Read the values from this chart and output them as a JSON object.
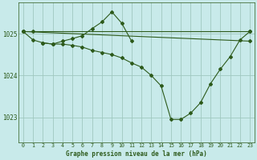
{
  "xlabel": "Graphe pression niveau de la mer (hPa)",
  "xlim": [
    -0.5,
    23.5
  ],
  "ylim": [
    1022.4,
    1025.75
  ],
  "yticks": [
    1023,
    1024,
    1025
  ],
  "xticks": [
    0,
    1,
    2,
    3,
    4,
    5,
    6,
    7,
    8,
    9,
    10,
    11,
    12,
    13,
    14,
    15,
    16,
    17,
    18,
    19,
    20,
    21,
    22,
    23
  ],
  "bg_color": "#c8eaea",
  "line_color": "#2d5a1b",
  "grid_color": "#a0c8c0",
  "series": [
    {
      "x": [
        0,
        1,
        23
      ],
      "y": [
        1025.05,
        1025.05,
        1025.05
      ]
    },
    {
      "x": [
        0,
        23
      ],
      "y": [
        1025.05,
        1024.82
      ]
    },
    {
      "x": [
        0,
        1,
        2,
        3,
        4,
        5,
        6,
        7,
        8,
        9,
        10,
        11,
        12,
        13,
        14,
        15,
        16,
        17,
        18,
        19,
        20,
        21,
        22,
        23
      ],
      "y": [
        1025.05,
        1024.85,
        1024.78,
        1024.75,
        1024.75,
        1024.72,
        1024.68,
        1024.6,
        1024.55,
        1024.5,
        1024.42,
        1024.3,
        1024.2,
        1024.0,
        1023.75,
        1022.95,
        1022.95,
        1023.1,
        1023.35,
        1023.8,
        1024.15,
        1024.45,
        1024.85,
        1025.05
      ]
    },
    {
      "x": [
        2,
        3,
        4,
        5,
        6,
        7,
        8,
        9,
        10,
        11
      ],
      "y": [
        1024.78,
        1024.75,
        1024.82,
        1024.88,
        1024.95,
        1025.12,
        1025.28,
        1025.52,
        1025.25,
        1024.82
      ]
    }
  ]
}
